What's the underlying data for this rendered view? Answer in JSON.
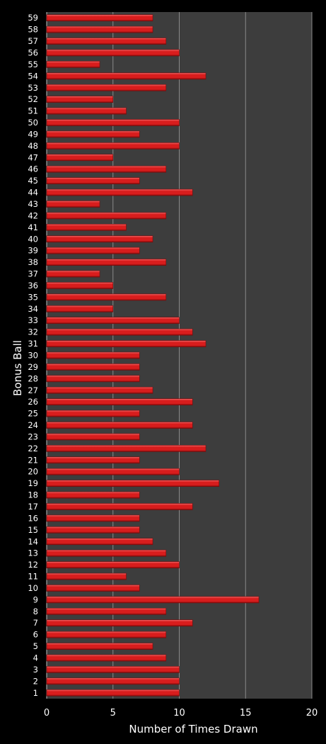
{
  "chart_data": {
    "type": "bar",
    "orientation": "horizontal",
    "title": "",
    "xlabel": "Number of Times Drawn",
    "ylabel": "Bonus Ball",
    "xlim": [
      0,
      20
    ],
    "xticks": [
      0,
      5,
      10,
      15,
      20
    ],
    "grid": true,
    "legend": "none",
    "categories": [
      "1",
      "2",
      "3",
      "4",
      "5",
      "6",
      "7",
      "8",
      "9",
      "10",
      "11",
      "12",
      "13",
      "14",
      "15",
      "16",
      "17",
      "18",
      "19",
      "20",
      "21",
      "22",
      "23",
      "24",
      "25",
      "26",
      "27",
      "28",
      "29",
      "30",
      "31",
      "32",
      "33",
      "34",
      "35",
      "36",
      "37",
      "38",
      "39",
      "40",
      "41",
      "42",
      "43",
      "44",
      "45",
      "46",
      "47",
      "48",
      "49",
      "50",
      "51",
      "52",
      "53",
      "54",
      "55",
      "56",
      "57",
      "58",
      "59"
    ],
    "values": [
      10,
      10,
      10,
      9,
      8,
      9,
      11,
      9,
      16,
      7,
      6,
      10,
      9,
      8,
      7,
      7,
      11,
      7,
      13,
      10,
      7,
      12,
      7,
      11,
      7,
      11,
      8,
      7,
      7,
      7,
      12,
      11,
      10,
      5,
      9,
      5,
      4,
      9,
      7,
      8,
      6,
      9,
      4,
      11,
      7,
      9,
      5,
      10,
      7,
      10,
      6,
      5,
      9,
      12,
      4,
      10,
      9,
      8,
      8
    ],
    "colors": {
      "background": "#000000",
      "plot_area": "#3d3d3d",
      "bar": "#d81d1d",
      "bar_highlight": "#f26a6a",
      "bar_shadow": "#7a0a0a",
      "grid": "#8a8a8a",
      "text": "#ffffff"
    }
  }
}
